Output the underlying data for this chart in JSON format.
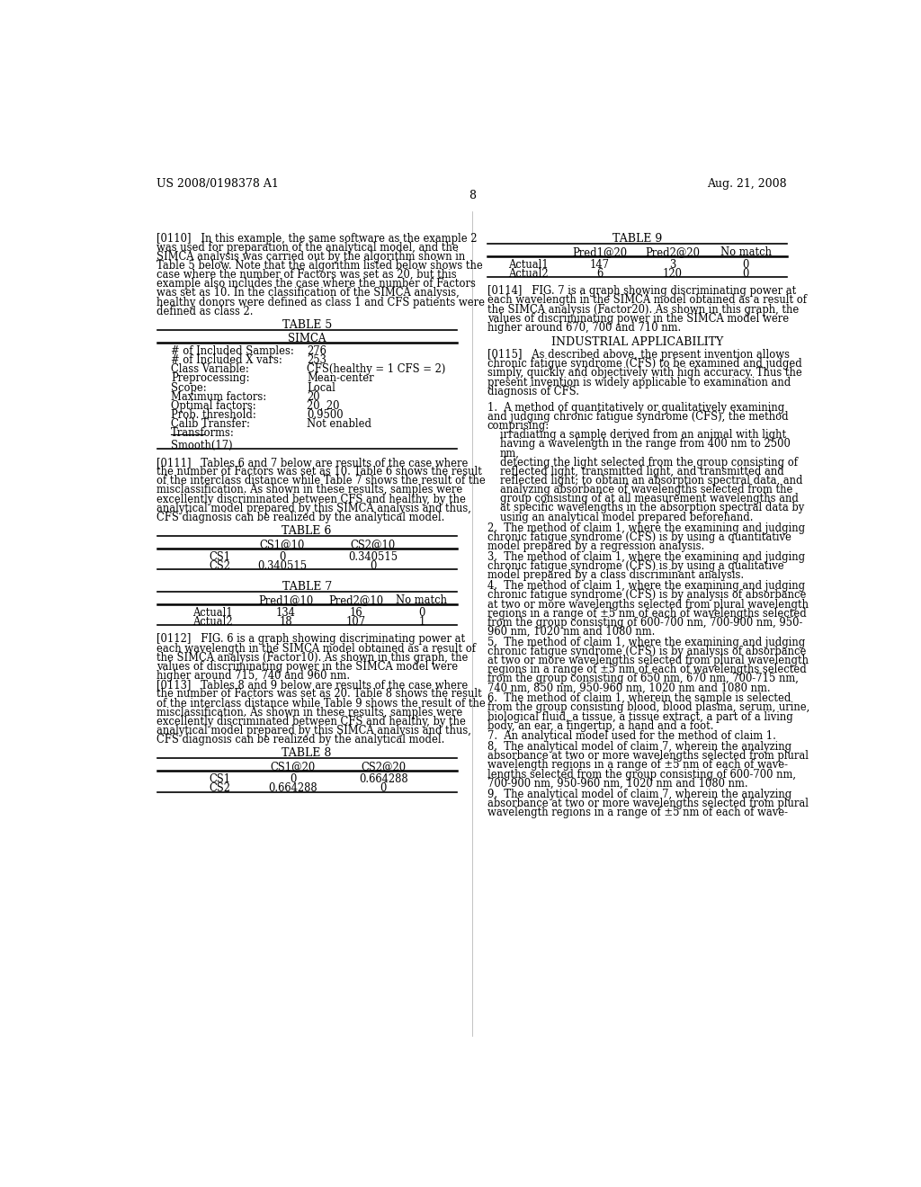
{
  "bg_color": "#ffffff",
  "header_left": "US 2008/0198378 A1",
  "header_right": "Aug. 21, 2008",
  "page_number": "8",
  "left_column": {
    "para0110_lines": [
      "[0110]   In this example, the same software as the example 2",
      "was used for preparation of the analytical model, and the",
      "SIMCA analysis was carried out by the algorithm shown in",
      "Table 5 below. Note that the algorithm listed below shows the",
      "case where the number of Factors was set as 20, but this",
      "example also includes the case where the number of Factors",
      "was set as 10. In the classification of the SIMCA analysis,",
      "healthy donors were defined as class 1 and CFS patients were",
      "defined as class 2."
    ],
    "table5_title": "TABLE 5",
    "table5_subheader": "SIMCA",
    "table5_rows": [
      [
        "# of Included Samples:",
        "276"
      ],
      [
        "# of Included X vars:",
        "253"
      ],
      [
        "Class Variable:",
        "CFS(healthy = 1 CFS = 2)"
      ],
      [
        "Preprocessing:",
        "Mean-center"
      ],
      [
        "Scope:",
        "Local"
      ],
      [
        "Maximum factors:",
        "20"
      ],
      [
        "Optimal factors:",
        "20, 20"
      ],
      [
        "Prob. threshold:",
        "0.9500"
      ],
      [
        "Calib Transfer:",
        "Not enabled"
      ],
      [
        "Transforms:",
        ""
      ],
      [
        "",
        ""
      ],
      [
        "Smooth(17)",
        ""
      ]
    ],
    "para0111_lines": [
      "[0111]   Tables 6 and 7 below are results of the case where",
      "the number of Factors was set as 10. Table 6 shows the result",
      "of the interclass distance while Table 7 shows the result of the",
      "misclassification. As shown in these results, samples were",
      "excellently discriminated between CFS and healthy, by the",
      "analytical model prepared by this SIMCA analysis and thus,",
      "CFS diagnosis can be realized by the analytical model."
    ],
    "table6_title": "TABLE 6",
    "table6_col_headers": [
      "",
      "CS1@10",
      "CS2@10"
    ],
    "table6_rows": [
      [
        "CS1",
        "0",
        "0.340515"
      ],
      [
        "CS2",
        "0.340515",
        "0"
      ]
    ],
    "table7_title": "TABLE 7",
    "table7_col_headers": [
      "",
      "Pred1@10",
      "Pred2@10",
      "No match"
    ],
    "table7_rows": [
      [
        "Actual1",
        "134",
        "16",
        "0"
      ],
      [
        "Actual2",
        "18",
        "107",
        "1"
      ]
    ],
    "para0112_lines": [
      "[0112]   FIG. 6 is a graph showing discriminating power at",
      "each wavelength in the SIMCA model obtained as a result of",
      "the SIMCA analysis (Factor10). As shown in this graph, the",
      "values of discriminating power in the SIMCA model were",
      "higher around 715, 740 and 960 nm."
    ],
    "para0113_lines": [
      "[0113]   Tables 8 and 9 below are results of the case where",
      "the number of Factors was set as 20. Table 8 shows the result",
      "of the interclass distance while Table 9 shows the result of the",
      "misclassification. As shown in these results, samples were",
      "excellently discriminated between CFS and healthy, by the",
      "analytical model prepared by this SIMCA analysis and thus,",
      "CFS diagnosis can be realized by the analytical model."
    ],
    "table8_title": "TABLE 8",
    "table8_col_headers": [
      "",
      "CS1@20",
      "CS2@20"
    ],
    "table8_rows": [
      [
        "CS1",
        "0",
        "0.664288"
      ],
      [
        "CS2",
        "0.664288",
        "0"
      ]
    ]
  },
  "right_column": {
    "table9_title": "TABLE 9",
    "table9_col_headers": [
      "",
      "Pred1@20",
      "Pred2@20",
      "No match"
    ],
    "table9_rows": [
      [
        "Actual1",
        "147",
        "3",
        "0"
      ],
      [
        "Actual2",
        "6",
        "120",
        "0"
      ]
    ],
    "para0114_lines": [
      "[0114]   FIG. 7 is a graph showing discriminating power at",
      "each wavelength in the SIMCA model obtained as a result of",
      "the SIMCA analysis (Factor20). As shown in this graph, the",
      "values of discriminating power in the SIMCA model were",
      "higher around 670, 700 and 710 nm."
    ],
    "section_title": "INDUSTRIAL APPLICABILITY",
    "para0115_lines": [
      "[0115]   As described above, the present invention allows",
      "chronic fatigue syndrome (CFS) to be examined and judged",
      "simply, quickly and objectively with high accuracy. Thus the",
      "present invention is widely applicable to examination and",
      "diagnosis of CFS."
    ],
    "claim1_lines": [
      "1.  A method of quantitatively or qualitatively examining",
      "and judging chronic fatigue syndrome (CFS), the method",
      "comprising:"
    ],
    "claim1_items": [
      [
        "irradiating a sample derived from an animal with light",
        "having a wavelength in the range from 400 nm to 2500",
        "nm,"
      ],
      [
        "detecting the light selected from the group consisting of",
        "reflected light, transmitted light, and transmitted and",
        "reflected light; to obtain an absorption spectral data, and"
      ],
      [
        "analyzing absorbance of wavelengths selected from the",
        "group consisting of at all measurement wavelengths and",
        "at specific wavelengths in the absorption spectral data by",
        "using an analytical model prepared beforehand."
      ]
    ],
    "claim2_lines": [
      "2.  The method of claim 1, where the examining and judging",
      "chronic fatigue syndrome (CFS) is by using a quantitative",
      "model prepared by a regression analysis."
    ],
    "claim3_lines": [
      "3.  The method of claim 1, where the examining and judging",
      "chronic fatigue syndrome (CFS) is by using a qualitative",
      "model prepared by a class discriminant analysis."
    ],
    "claim4_lines": [
      "4.  The method of claim 1, where the examining and judging",
      "chronic fatigue syndrome (CFS) is by analysis of absorbance",
      "at two or more wavelengths selected from plural wavelength",
      "regions in a range of ±5 nm of each of wavelengths selected",
      "from the group consisting of 600-700 nm, 700-900 nm, 950-",
      "960 nm, 1020 nm and 1080 nm."
    ],
    "claim5_lines": [
      "5.  The method of claim 1, where the examining and judging",
      "chronic fatigue syndrome (CFS) is by analysis of absorbance",
      "at two or more wavelengths selected from plural wavelength",
      "regions in a range of ±5 nm of each of wavelengths selected",
      "from the group consisting of 650 nm, 670 nm, 700-715 nm,",
      "740 nm, 850 nm, 950-960 nm, 1020 nm and 1080 nm."
    ],
    "claim6_lines": [
      "6.  The method of claim 1, wherein the sample is selected",
      "from the group consisting blood, blood plasma, serum, urine,",
      "biological fluid, a tissue, a tissue extract, a part of a living",
      "body, an ear, a fingertip, a hand and a foot."
    ],
    "claim7_lines": [
      "7.  An analytical model used for the method of claim 1."
    ],
    "claim8_lines": [
      "8.  The analytical model of claim 7, wherein the analyzing",
      "absorbance at two or more wavelengths selected from plural",
      "wavelength regions in a range of ±5 nm of each of wave-",
      "lengths selected from the group consisting of 600-700 nm,",
      "700-900 nm, 950-960 nm, 1020 nm and 1080 nm."
    ],
    "claim9_lines": [
      "9.  The analytical model of claim 7, wherein the analyzing",
      "absorbance at two or more wavelengths selected from plural",
      "wavelength regions in a range of ±5 nm of each of wave-"
    ]
  }
}
